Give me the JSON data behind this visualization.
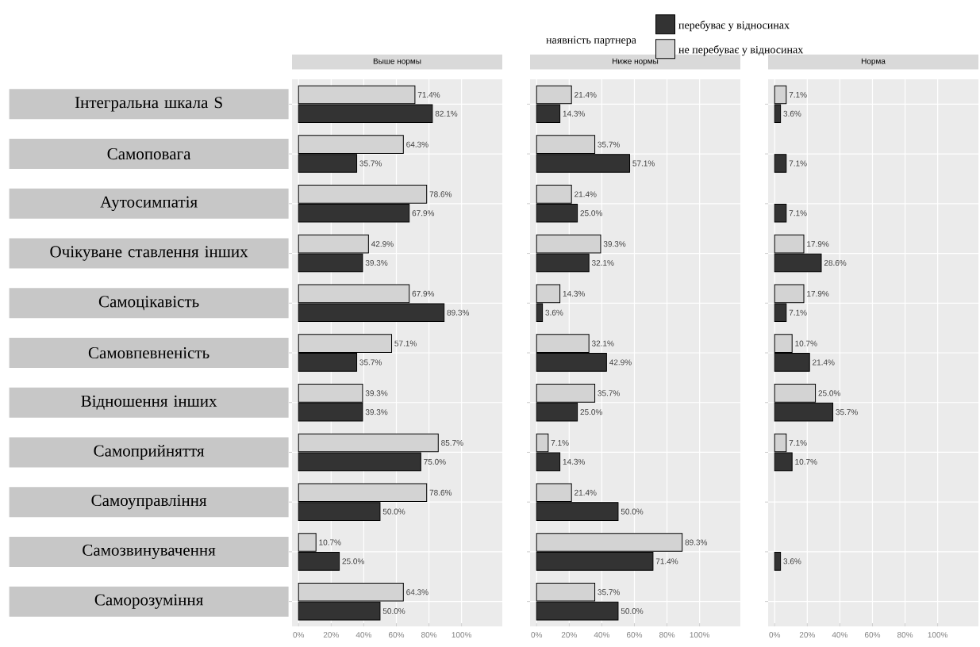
{
  "chart_data": [
    {
      "type": "bar",
      "orientation": "horizontal",
      "title": "Выше нормы",
      "categories": [
        "Інтегральна шкала S",
        "Самоповага",
        "Аутосимпатія",
        "Очікуване ставлення інших",
        "Самоцікавість",
        "Самовпевненість",
        "Відношення інших",
        "Самоприйняття",
        "Самоуправління",
        "Самозвинувачення",
        "Саморозуміння"
      ],
      "series": [
        {
          "color": "#333333",
          "values": [
            82.1,
            35.7,
            67.9,
            39.3,
            89.3,
            35.7,
            39.3,
            75.0,
            50.0,
            25.0,
            50.0
          ],
          "value_labels": [
            "82.1%",
            "35.7%",
            "67.9%",
            "39.3%",
            "89.3%",
            "35.7%",
            "39.3%",
            "75.0%",
            "50.0%",
            "25.0%",
            "50.0%"
          ]
        },
        {
          "color": "#d3d3d3",
          "values": [
            71.4,
            64.3,
            78.6,
            42.9,
            67.9,
            57.1,
            39.3,
            85.7,
            78.6,
            10.7,
            64.3
          ],
          "value_labels": [
            "71.4%",
            "64.3%",
            "78.6%",
            "42.9%",
            "67.9%",
            "57.1%",
            "39.3%",
            "85.7%",
            "78.6%",
            "10.7%",
            "64.3%"
          ]
        }
      ],
      "xlim": [
        -4,
        125
      ],
      "xticks": [
        {
          "value": 0,
          "label": "0%"
        },
        {
          "value": 20,
          "label": "20%"
        },
        {
          "value": 40,
          "label": "40%"
        },
        {
          "value": 60,
          "label": "60%"
        },
        {
          "value": 80,
          "label": "80%"
        },
        {
          "value": 100,
          "label": "100%"
        }
      ],
      "grid": true
    },
    {
      "type": "bar",
      "orientation": "horizontal",
      "title": "Ниже нормы",
      "categories": [
        null,
        null,
        null,
        null,
        null,
        null,
        null,
        null,
        null,
        null,
        null
      ],
      "series": [
        {
          "color": "#333333",
          "values": [
            14.3,
            57.1,
            25.0,
            32.1,
            3.6,
            42.9,
            25.0,
            14.3,
            50.0,
            71.4,
            50.0
          ],
          "value_labels": [
            "14.3%",
            "57.1%",
            "25.0%",
            "32.1%",
            "3.6%",
            "42.9%",
            "25.0%",
            "14.3%",
            "50.0%",
            "71.4%",
            "50.0%"
          ]
        },
        {
          "color": "#d3d3d3",
          "values": [
            21.4,
            35.7,
            21.4,
            39.3,
            14.3,
            32.1,
            35.7,
            7.1,
            21.4,
            89.3,
            35.7
          ],
          "value_labels": [
            "21.4%",
            "35.7%",
            "21.4%",
            "39.3%",
            "14.3%",
            "32.1%",
            "35.7%",
            "7.1%",
            "21.4%",
            "89.3%",
            "35.7%"
          ]
        }
      ],
      "xlim": [
        -4,
        125
      ],
      "xticks": [
        {
          "value": 0,
          "label": "0%"
        },
        {
          "value": 20,
          "label": "20%"
        },
        {
          "value": 40,
          "label": "40%"
        },
        {
          "value": 60,
          "label": "60%"
        },
        {
          "value": 80,
          "label": "80%"
        },
        {
          "value": 100,
          "label": "100%"
        }
      ],
      "grid": true,
      "tick_labels": "x"
    },
    {
      "type": "bar",
      "orientation": "horizontal",
      "title": "Норма",
      "categories": [
        null,
        null,
        null,
        null,
        null,
        null,
        null,
        null,
        null,
        null,
        null
      ],
      "series": [
        {
          "name": "перебуває у відносинах",
          "color": "#333333",
          "values": [
            3.6,
            7.1,
            7.1,
            28.6,
            7.1,
            21.4,
            35.7,
            10.7,
            null,
            3.6,
            null
          ],
          "value_labels": [
            "3.6%",
            "7.1%",
            "7.1%",
            "28.6%",
            "7.1%",
            "21.4%",
            "35.7%",
            "10.7%",
            null,
            "3.6%",
            null
          ]
        },
        {
          "name": "не перебуває у відносинах",
          "color": "#d3d3d3",
          "values": [
            7.1,
            null,
            null,
            17.9,
            17.9,
            10.7,
            25.0,
            7.1,
            null,
            null,
            null
          ],
          "value_labels": [
            "7.1%",
            null,
            null,
            "17.9%",
            "17.9%",
            "10.7%",
            "25.0%",
            "7.1%",
            null,
            null,
            null
          ]
        }
      ],
      "xlim": [
        -4,
        125
      ],
      "xticks": [
        {
          "value": 0,
          "label": "0%"
        },
        {
          "value": 20,
          "label": "20%"
        },
        {
          "value": 40,
          "label": "40%"
        },
        {
          "value": 60,
          "label": "60%"
        },
        {
          "value": 80,
          "label": "80%"
        },
        {
          "value": 100,
          "label": "100%"
        }
      ],
      "grid": true,
      "tick_labels": "x",
      "legend": "top",
      "legend_title": "наявність партнера"
    }
  ]
}
